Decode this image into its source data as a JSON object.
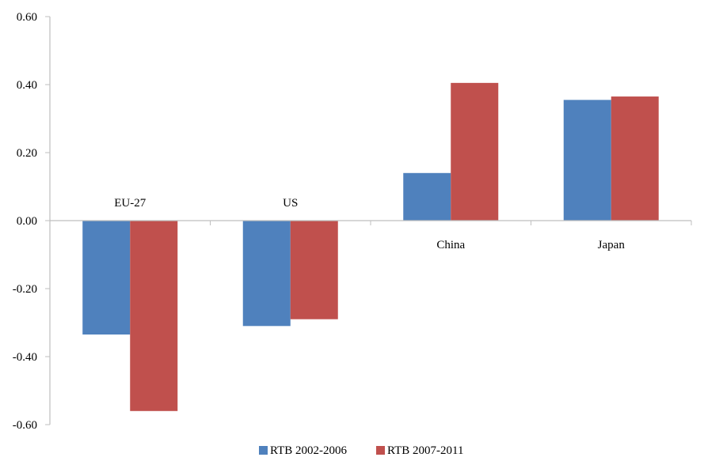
{
  "chart_data": {
    "type": "bar",
    "categories": [
      "EU-27",
      "US",
      "China",
      "Japan"
    ],
    "series": [
      {
        "name": "RTB 2002-2006",
        "color": "#4f81bd",
        "values": [
          -0.335,
          -0.31,
          0.14,
          0.355
        ]
      },
      {
        "name": "RTB 2007-2011",
        "color": "#c0504d",
        "values": [
          -0.56,
          -0.29,
          0.405,
          0.365
        ]
      }
    ],
    "ylim": [
      -0.6,
      0.6
    ],
    "yticks": [
      "0.60",
      "0.40",
      "0.20",
      "0.00",
      "-0.20",
      "-0.40",
      "-0.60"
    ],
    "ytick_values": [
      0.6,
      0.4,
      0.2,
      0.0,
      -0.2,
      -0.4,
      -0.6
    ],
    "legend_position": "bottom-center",
    "grid": false
  }
}
